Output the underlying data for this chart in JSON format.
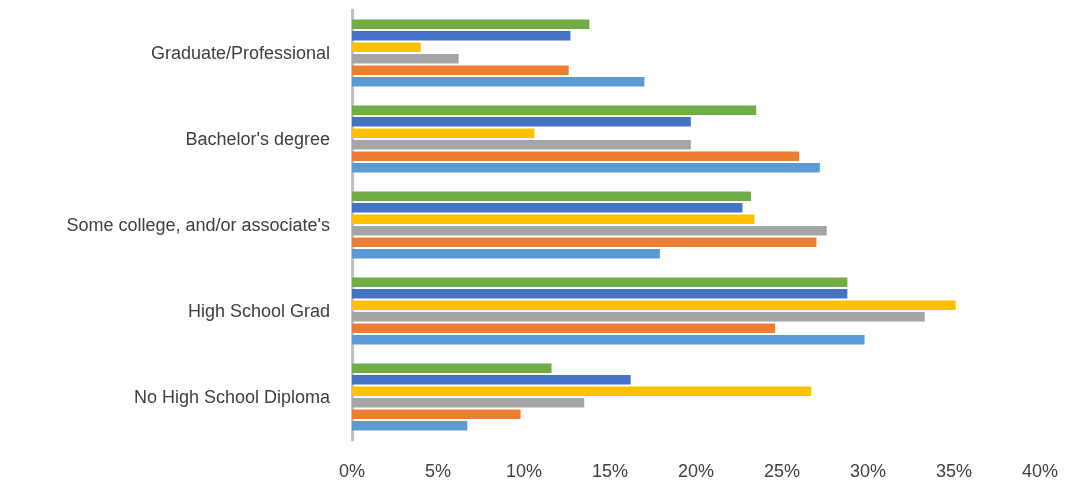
{
  "chart_data": {
    "type": "bar",
    "orientation": "horizontal",
    "categories": [
      "Graduate/Professional",
      "Bachelor's degree",
      "Some college, and/or associate's",
      "High School Grad",
      "No High School Diploma"
    ],
    "series": [
      {
        "color": "#70ad47",
        "values": [
          13.8,
          23.5,
          23.2,
          28.8,
          11.6
        ]
      },
      {
        "color": "#4472c4",
        "values": [
          12.7,
          19.7,
          22.7,
          28.8,
          16.2
        ]
      },
      {
        "color": "#ffc000",
        "values": [
          4.0,
          10.6,
          23.4,
          35.1,
          26.7
        ]
      },
      {
        "color": "#a5a5a5",
        "values": [
          6.2,
          19.7,
          27.6,
          33.3,
          13.5
        ]
      },
      {
        "color": "#ed7d31",
        "values": [
          12.6,
          26.0,
          27.0,
          24.6,
          9.8
        ]
      },
      {
        "color": "#5b9bd5",
        "values": [
          17.0,
          27.2,
          17.9,
          29.8,
          6.7
        ]
      }
    ],
    "xlim": [
      0,
      40
    ],
    "xticks": [
      {
        "value": 0,
        "label": "0%"
      },
      {
        "value": 5,
        "label": "5%"
      },
      {
        "value": 10,
        "label": "10%"
      },
      {
        "value": 15,
        "label": "15%"
      },
      {
        "value": 20,
        "label": "20%"
      },
      {
        "value": 25,
        "label": "25%"
      },
      {
        "value": 30,
        "label": "30%"
      },
      {
        "value": 35,
        "label": "35%"
      },
      {
        "value": 40,
        "label": "40%"
      }
    ],
    "grid": false
  }
}
